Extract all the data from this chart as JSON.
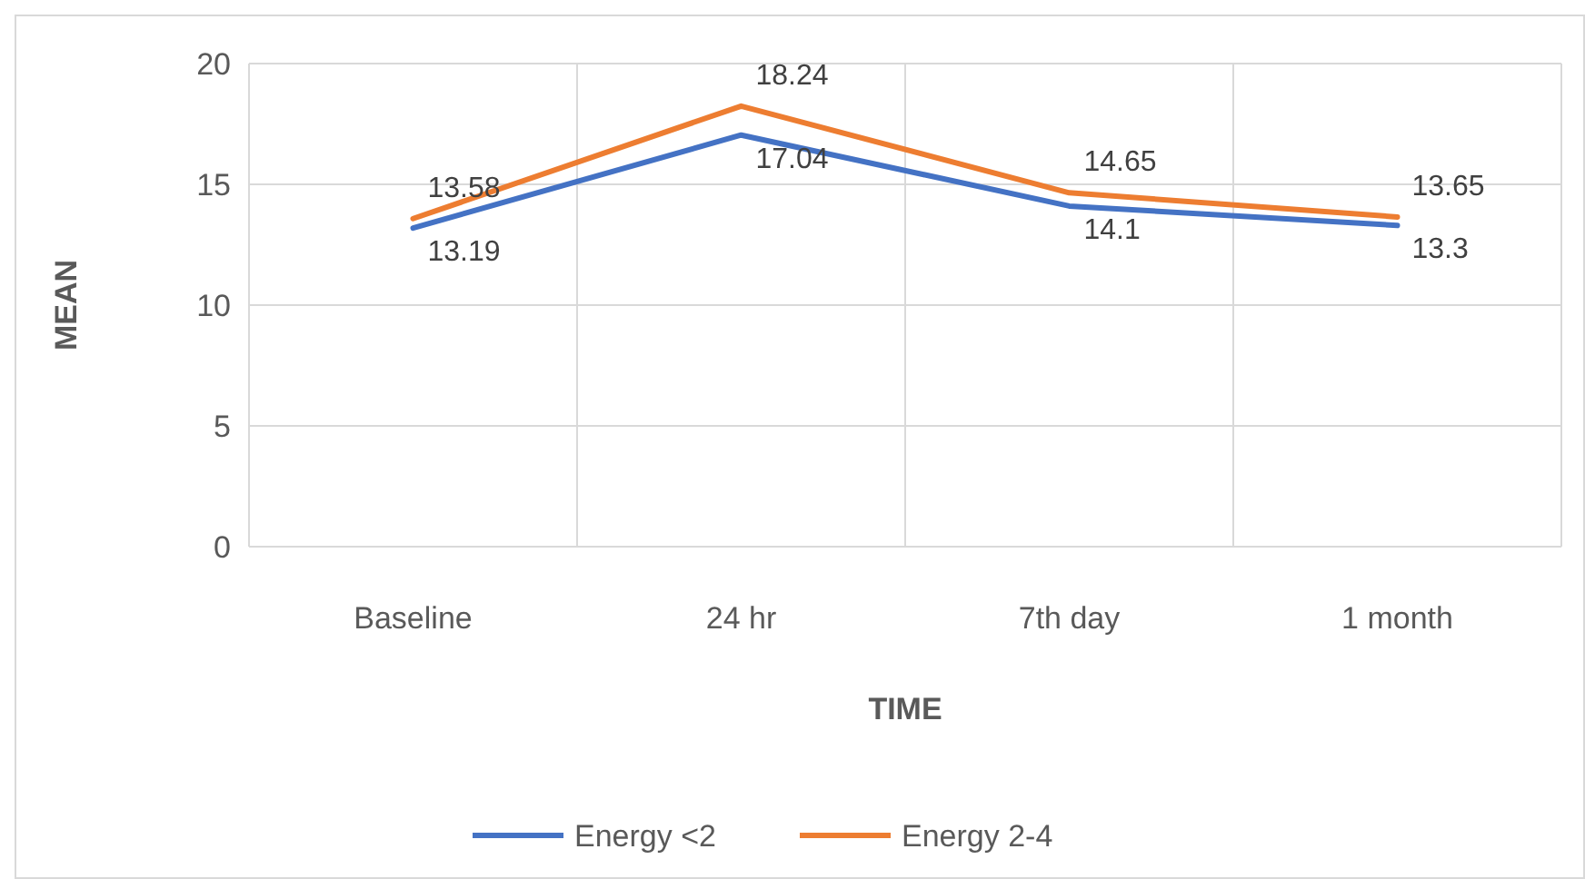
{
  "chart_data": {
    "type": "line",
    "xlabel": "TIME",
    "ylabel": "MEAN",
    "categories": [
      "Baseline",
      "24 hr",
      "7th day",
      "1 month"
    ],
    "series": [
      {
        "name": "Energy <2",
        "color": "#4472c4",
        "values": [
          13.19,
          17.04,
          14.1,
          13.3
        ]
      },
      {
        "name": "Energy 2-4",
        "color": "#ed7d31",
        "values": [
          13.58,
          18.24,
          14.65,
          13.65
        ]
      }
    ],
    "ylim": [
      0,
      20
    ],
    "yticks": [
      0,
      5,
      10,
      15,
      20
    ],
    "grid": true,
    "legend": "bottom",
    "data_labels": true,
    "marker": "none",
    "line_style": "solid"
  }
}
